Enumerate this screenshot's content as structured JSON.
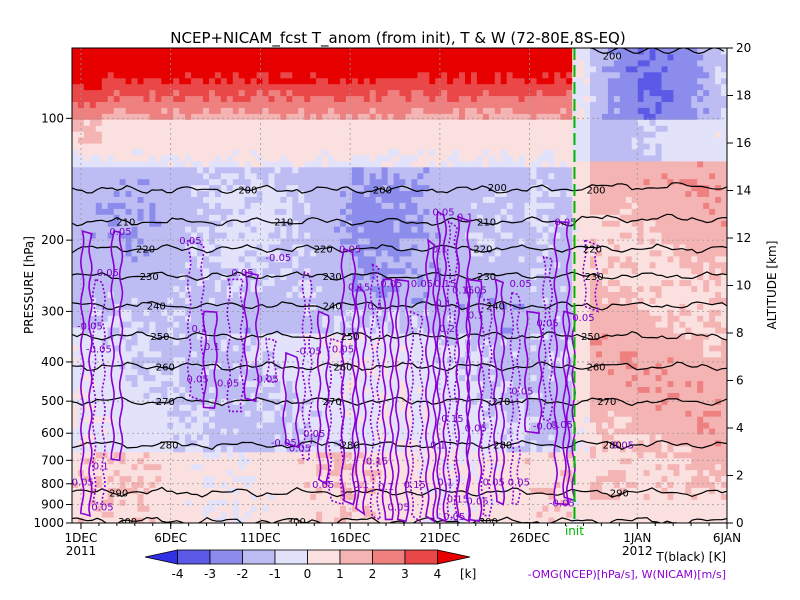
{
  "chart_data": {
    "type": "heatmap",
    "title": "NCEP+NICAM_fcst T_anom (from init), T & W  (72-80E,8S-EQ)",
    "ylabel_left": "PRESSURE [hPa]",
    "ylabel_right": "ALTITUDE [km]",
    "pressure_ticks": [
      100,
      200,
      300,
      400,
      500,
      600,
      700,
      800,
      900,
      1000
    ],
    "pressure_tick_labels": [
      "100",
      "200",
      "300",
      "400",
      "500",
      "600",
      "700",
      "800",
      "900",
      "1000"
    ],
    "altitude_ticks": [
      0,
      2,
      4,
      6,
      8,
      10,
      12,
      14,
      16,
      18,
      20
    ],
    "x_ticks": [
      {
        "day": 1,
        "label": "1DEC"
      },
      {
        "day": 6,
        "label": "6DEC"
      },
      {
        "day": 11,
        "label": "11DEC"
      },
      {
        "day": 16,
        "label": "16DEC"
      },
      {
        "day": 21,
        "label": "21DEC"
      },
      {
        "day": 26,
        "label": "26DEC"
      },
      {
        "day": 32,
        "label": "1JAN"
      },
      {
        "day": 37,
        "label": "6JAN"
      }
    ],
    "x_year_labels": [
      {
        "day": 1,
        "label": "2011"
      },
      {
        "day": 32,
        "label": "2012"
      }
    ],
    "xlim": [
      0.5,
      37
    ],
    "init_day": 28.5,
    "init_label": "init",
    "colorbar": {
      "ticks": [
        "-4",
        "-3",
        "-2",
        "-1",
        "0",
        "1",
        "2",
        "3",
        "4"
      ],
      "unit": "[k]",
      "colors": [
        "#3030e6",
        "#5a5ae6",
        "#8c8cec",
        "#bdbdf4",
        "#e2e2fa",
        "#fbe0e0",
        "#f5b4b4",
        "#ef8080",
        "#ea4848",
        "#e60000"
      ]
    },
    "legend_temperature": "T(black) [K]",
    "legend_velocity": "-OMG(NCEP)[hPa/s], W(NICAM)[m/s]",
    "temperature_contours": [
      {
        "level": "200",
        "pressure": 150
      },
      {
        "level": "210",
        "pressure": 180
      },
      {
        "level": "220",
        "pressure": 210
      },
      {
        "level": "230",
        "pressure": 245
      },
      {
        "level": "240",
        "pressure": 290
      },
      {
        "level": "250",
        "pressure": 345
      },
      {
        "level": "260",
        "pressure": 410
      },
      {
        "level": "270",
        "pressure": 500
      },
      {
        "level": "280",
        "pressure": 640
      },
      {
        "level": "290",
        "pressure": 840
      },
      {
        "level": "300",
        "pressure": 990
      }
    ],
    "temperature_contour_labels": [
      {
        "label": "200",
        "day": 10.3,
        "pressure": 150
      },
      {
        "label": "200",
        "day": 17.8,
        "pressure": 150
      },
      {
        "label": "200",
        "day": 24.2,
        "pressure": 148
      },
      {
        "label": "200",
        "day": 29.7,
        "pressure": 150
      },
      {
        "label": "200",
        "day": 30.6,
        "pressure": 70
      },
      {
        "label": "210",
        "day": 3.5,
        "pressure": 180
      },
      {
        "label": "210",
        "day": 12.3,
        "pressure": 180
      },
      {
        "label": "210",
        "day": 23.6,
        "pressure": 180
      },
      {
        "label": "220",
        "day": 4.6,
        "pressure": 210
      },
      {
        "label": "220",
        "day": 14.5,
        "pressure": 210
      },
      {
        "label": "220",
        "day": 23.4,
        "pressure": 210
      },
      {
        "label": "220",
        "day": 29.5,
        "pressure": 210
      },
      {
        "label": "230",
        "day": 4.8,
        "pressure": 245
      },
      {
        "label": "230",
        "day": 15.0,
        "pressure": 245
      },
      {
        "label": "230",
        "day": 23.6,
        "pressure": 245
      },
      {
        "label": "230",
        "day": 29.6,
        "pressure": 245
      },
      {
        "label": "240",
        "day": 5.2,
        "pressure": 290
      },
      {
        "label": "240",
        "day": 15.0,
        "pressure": 290
      },
      {
        "label": "240",
        "day": 24.1,
        "pressure": 290
      },
      {
        "label": "250",
        "day": 5.4,
        "pressure": 345
      },
      {
        "label": "250",
        "day": 16.0,
        "pressure": 345
      },
      {
        "label": "250",
        "day": 29.4,
        "pressure": 345
      },
      {
        "label": "260",
        "day": 5.7,
        "pressure": 410
      },
      {
        "label": "260",
        "day": 15.6,
        "pressure": 410
      },
      {
        "label": "260",
        "day": 29.7,
        "pressure": 410
      },
      {
        "label": "270",
        "day": 5.7,
        "pressure": 500
      },
      {
        "label": "270",
        "day": 15.0,
        "pressure": 500
      },
      {
        "label": "270",
        "day": 24.4,
        "pressure": 500
      },
      {
        "label": "270",
        "day": 30.3,
        "pressure": 500
      },
      {
        "label": "280",
        "day": 5.9,
        "pressure": 640
      },
      {
        "label": "280",
        "day": 16.0,
        "pressure": 640
      },
      {
        "label": "280",
        "day": 24.5,
        "pressure": 640
      },
      {
        "label": "280",
        "day": 30.6,
        "pressure": 640
      },
      {
        "label": "290",
        "day": 3.1,
        "pressure": 840
      },
      {
        "label": "290",
        "day": 31.0,
        "pressure": 840
      },
      {
        "label": "300",
        "day": 3.6,
        "pressure": 990
      },
      {
        "label": "300",
        "day": 13.0,
        "pressure": 990
      },
      {
        "label": "300",
        "day": 23.7,
        "pressure": 990
      }
    ],
    "velocity_contour_labels": [
      {
        "label": "0.05",
        "day": 3.2,
        "pressure": 190
      },
      {
        "label": "0.05",
        "day": 7.1,
        "pressure": 200
      },
      {
        "label": "0.05",
        "day": 2.5,
        "pressure": 240
      },
      {
        "label": "0.05",
        "day": 10.0,
        "pressure": 240
      },
      {
        "label": "-0.05",
        "day": 12.0,
        "pressure": 220
      },
      {
        "label": "-0.05",
        "day": 1.5,
        "pressure": 325
      },
      {
        "label": "-0.05",
        "day": 2.0,
        "pressure": 370
      },
      {
        "label": "0.1",
        "day": 7.6,
        "pressure": 330
      },
      {
        "label": "0.1",
        "day": 8.3,
        "pressure": 365
      },
      {
        "label": "0.05",
        "day": 7.5,
        "pressure": 440
      },
      {
        "label": "0.05",
        "day": 9.2,
        "pressure": 450
      },
      {
        "label": "-0.05",
        "day": 11.3,
        "pressure": 440
      },
      {
        "label": "-0.05",
        "day": 13.7,
        "pressure": 375
      },
      {
        "label": "0.05",
        "day": 15.6,
        "pressure": 370
      },
      {
        "label": "0.15",
        "day": 16.5,
        "pressure": 260
      },
      {
        "label": "0.05",
        "day": 16.0,
        "pressure": 210
      },
      {
        "label": "0.1",
        "day": 17.4,
        "pressure": 290
      },
      {
        "label": "0.05",
        "day": 18.3,
        "pressure": 255
      },
      {
        "label": "0.05",
        "day": 20.0,
        "pressure": 255
      },
      {
        "label": "0.1",
        "day": 21.0,
        "pressure": 210
      },
      {
        "label": "0.05",
        "day": 21.2,
        "pressure": 170
      },
      {
        "label": "0.1",
        "day": 22.4,
        "pressure": 175
      },
      {
        "label": "0.1",
        "day": 21.2,
        "pressure": 285
      },
      {
        "label": "0.15",
        "day": 21.3,
        "pressure": 255
      },
      {
        "label": "0.15",
        "day": 22.3,
        "pressure": 265
      },
      {
        "label": "0.05",
        "day": 23.0,
        "pressure": 265
      },
      {
        "label": "0.1",
        "day": 23.0,
        "pressure": 305
      },
      {
        "label": "0.2",
        "day": 21.4,
        "pressure": 330
      },
      {
        "label": "0.05",
        "day": 25.5,
        "pressure": 255
      },
      {
        "label": "0.05",
        "day": 27.0,
        "pressure": 320
      },
      {
        "label": "0.05",
        "day": 25.6,
        "pressure": 470
      },
      {
        "label": "0.05",
        "day": 28.0,
        "pressure": 180
      },
      {
        "label": "0.05",
        "day": 29.0,
        "pressure": 310
      },
      {
        "label": "0.15",
        "day": 21.7,
        "pressure": 550
      },
      {
        "label": "0.15",
        "day": 17.5,
        "pressure": 700
      },
      {
        "label": "0.1",
        "day": 20.9,
        "pressure": 640
      },
      {
        "label": "0.15",
        "day": 19.6,
        "pressure": 800
      },
      {
        "label": "0.1",
        "day": 16.6,
        "pressure": 800
      },
      {
        "label": "0.1",
        "day": 18.0,
        "pressure": 810
      },
      {
        "label": "0.15",
        "day": 22.0,
        "pressure": 870
      },
      {
        "label": "0.1",
        "day": 21.3,
        "pressure": 790
      },
      {
        "label": "0.05",
        "day": 14.0,
        "pressure": 600
      },
      {
        "label": "0.05",
        "day": 14.5,
        "pressure": 800
      },
      {
        "label": "-0.05",
        "day": 12.3,
        "pressure": 630
      },
      {
        "label": "0.05",
        "day": 13.2,
        "pressure": 650
      },
      {
        "label": "0.05",
        "day": 23.0,
        "pressure": 580
      },
      {
        "label": "0.05",
        "day": 24.0,
        "pressure": 790
      },
      {
        "label": "0.05",
        "day": 25.4,
        "pressure": 790
      },
      {
        "label": "0.05",
        "day": 18.7,
        "pressure": 910
      },
      {
        "label": "0.05",
        "day": 23.1,
        "pressure": 880
      },
      {
        "label": "0.05",
        "day": 21.8,
        "pressure": 960
      },
      {
        "label": "-0.05",
        "day": 27.8,
        "pressure": 890
      },
      {
        "label": "-0.05",
        "day": 26.9,
        "pressure": 575
      },
      {
        "label": "0.05",
        "day": 27.8,
        "pressure": 570
      },
      {
        "label": "0.1",
        "day": 2.1,
        "pressure": 720
      },
      {
        "label": "0.05",
        "day": 1.1,
        "pressure": 790
      },
      {
        "label": "0.05",
        "day": 2.2,
        "pressure": 910
      },
      {
        "label": "0.05",
        "day": 31.2,
        "pressure": 640
      }
    ]
  }
}
